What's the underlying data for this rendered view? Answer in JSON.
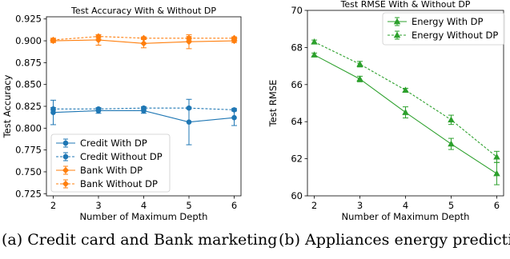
{
  "captions": {
    "a": "(a) Credit card and Bank marketing",
    "b": "(b) Appliances energy prediction"
  },
  "chart_data": [
    {
      "type": "line",
      "title": "Test Accuracy With & Without DP",
      "xlabel": "Number of Maximum Depth",
      "ylabel": "Test Accuracy",
      "x": [
        2,
        3,
        4,
        5,
        6
      ],
      "xticks": [
        "2",
        "3",
        "4",
        "5",
        "6"
      ],
      "yticks": [
        "0.725",
        "0.750",
        "0.775",
        "0.800",
        "0.825",
        "0.850",
        "0.875",
        "0.900",
        "0.925"
      ],
      "ylim": [
        0.7225,
        0.9275
      ],
      "grid": false,
      "legend_position": "lower-left",
      "series": [
        {
          "name": "Credit With DP",
          "color": "#1f77b4",
          "marker": "circle",
          "linestyle": "solid",
          "values": [
            0.818,
            0.82,
            0.82,
            0.807,
            0.812
          ],
          "errors": [
            0.014,
            0.003,
            0.003,
            0.026,
            0.009
          ]
        },
        {
          "name": "Credit Without DP",
          "color": "#1f77b4",
          "marker": "circle",
          "linestyle": "dashed",
          "values": [
            0.822,
            0.822,
            0.823,
            0.823,
            0.821
          ],
          "errors": [
            0.0015,
            0.0015,
            0.0015,
            0.001,
            0.0015
          ]
        },
        {
          "name": "Bank With DP",
          "color": "#ff7f0e",
          "marker": "diamond",
          "linestyle": "solid",
          "values": [
            0.9,
            0.901,
            0.897,
            0.899,
            0.9
          ],
          "errors": [
            0.002,
            0.006,
            0.005,
            0.008,
            0.002
          ]
        },
        {
          "name": "Bank Without DP",
          "color": "#ff7f0e",
          "marker": "diamond",
          "linestyle": "dashed",
          "values": [
            0.901,
            0.905,
            0.903,
            0.903,
            0.903
          ],
          "errors": [
            0.002,
            0.002,
            0.0015,
            0.002,
            0.0015
          ]
        }
      ]
    },
    {
      "type": "line",
      "title": "Test RMSE With & Without DP",
      "xlabel": "Number of Maximum Depth",
      "ylabel": "Test RMSE",
      "x": [
        2,
        3,
        4,
        5,
        6
      ],
      "xticks": [
        "2",
        "3",
        "4",
        "5",
        "6"
      ],
      "yticks": [
        "60",
        "62",
        "64",
        "66",
        "68",
        "70"
      ],
      "ylim": [
        60,
        70
      ],
      "grid": false,
      "legend_position": "upper-right",
      "series": [
        {
          "name": "Energy With DP",
          "color": "#2ca02c",
          "marker": "triangle",
          "linestyle": "solid",
          "values": [
            67.6,
            66.3,
            64.5,
            62.8,
            61.2
          ],
          "errors": [
            0.1,
            0.15,
            0.3,
            0.3,
            0.6
          ]
        },
        {
          "name": "Energy Without DP",
          "color": "#2ca02c",
          "marker": "triangle",
          "linestyle": "dashed",
          "values": [
            68.3,
            67.1,
            65.7,
            64.1,
            62.1
          ],
          "errors": [
            0.1,
            0.15,
            0.1,
            0.25,
            0.3
          ]
        }
      ]
    }
  ]
}
